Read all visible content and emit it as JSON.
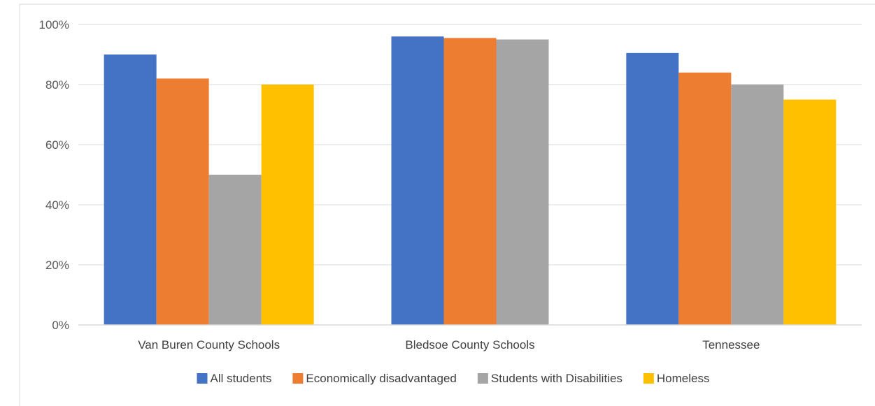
{
  "chart_data": {
    "type": "bar",
    "categories": [
      "Van Buren County Schools",
      "Bledsoe County Schools",
      "Tennessee"
    ],
    "series": [
      {
        "name": "All students",
        "color": "#4472C4",
        "values": [
          90,
          96,
          90.5
        ]
      },
      {
        "name": "Economically disadvantaged",
        "color": "#ED7D31",
        "values": [
          82,
          95.5,
          84
        ]
      },
      {
        "name": "Students with Disabilities",
        "color": "#A5A5A5",
        "values": [
          50,
          95,
          80
        ]
      },
      {
        "name": "Homeless",
        "color": "#FFC000",
        "values": [
          80,
          null,
          75
        ]
      }
    ],
    "ylim": [
      0,
      100
    ],
    "yticks": [
      "0%",
      "20%",
      "40%",
      "60%",
      "80%",
      "100%"
    ],
    "grid": true,
    "legend_position": "bottom",
    "title": "",
    "xlabel": "",
    "ylabel": ""
  }
}
